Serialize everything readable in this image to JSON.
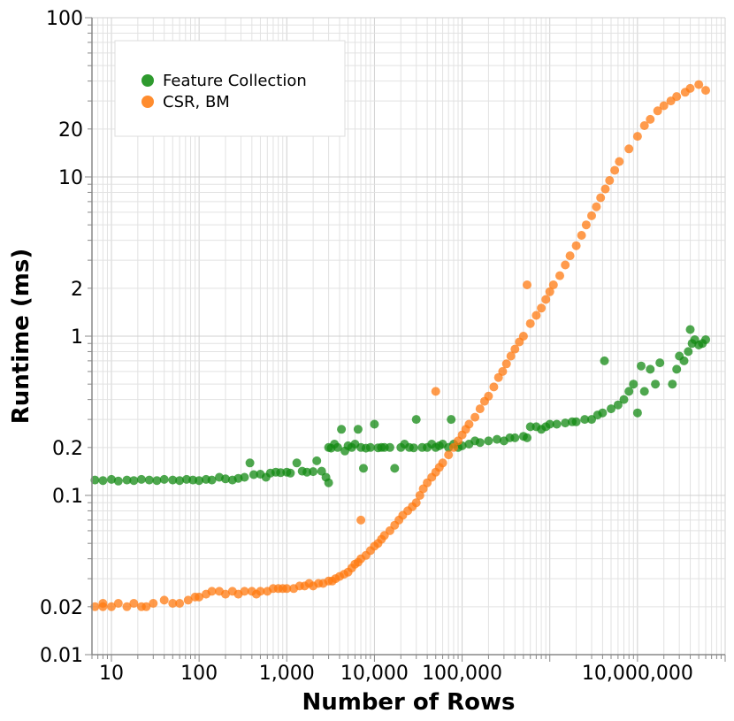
{
  "chart_data": {
    "type": "scatter",
    "xlabel": "Number of Rows",
    "ylabel": "Runtime (ms)",
    "x_scale": "log",
    "y_scale": "log",
    "xlim": [
      6,
      100000000
    ],
    "ylim": [
      0.01,
      100
    ],
    "grid": true,
    "legend_position": "top-left",
    "x_tick_labels": [
      {
        "value": 10,
        "label": "10"
      },
      {
        "value": 100,
        "label": "100"
      },
      {
        "value": 1000,
        "label": "1,000"
      },
      {
        "value": 10000,
        "label": "10,000"
      },
      {
        "value": 100000,
        "label": "100,000"
      },
      {
        "value": 10000000,
        "label": "10,000,000"
      }
    ],
    "y_tick_labels": [
      {
        "value": 0.01,
        "label": "0.01"
      },
      {
        "value": 0.02,
        "label": "0.02"
      },
      {
        "value": 0.1,
        "label": "0.1"
      },
      {
        "value": 0.2,
        "label": "0.2"
      },
      {
        "value": 1,
        "label": "1"
      },
      {
        "value": 2,
        "label": "2"
      },
      {
        "value": 10,
        "label": "10"
      },
      {
        "value": 20,
        "label": "20"
      },
      {
        "value": 100,
        "label": "100"
      }
    ],
    "series": [
      {
        "name": "Feature Collection",
        "color": "#2e9a2e",
        "points": [
          [
            6.5,
            0.125
          ],
          [
            8,
            0.124
          ],
          [
            10,
            0.126
          ],
          [
            12,
            0.123
          ],
          [
            15,
            0.125
          ],
          [
            18,
            0.124
          ],
          [
            22,
            0.126
          ],
          [
            27,
            0.125
          ],
          [
            33,
            0.124
          ],
          [
            40,
            0.126
          ],
          [
            50,
            0.125
          ],
          [
            60,
            0.124
          ],
          [
            72,
            0.126
          ],
          [
            85,
            0.125
          ],
          [
            100,
            0.124
          ],
          [
            120,
            0.126
          ],
          [
            140,
            0.125
          ],
          [
            170,
            0.13
          ],
          [
            200,
            0.127
          ],
          [
            240,
            0.125
          ],
          [
            280,
            0.128
          ],
          [
            330,
            0.13
          ],
          [
            380,
            0.16
          ],
          [
            420,
            0.135
          ],
          [
            500,
            0.136
          ],
          [
            580,
            0.13
          ],
          [
            650,
            0.138
          ],
          [
            750,
            0.14
          ],
          [
            850,
            0.139
          ],
          [
            1000,
            0.14
          ],
          [
            1100,
            0.138
          ],
          [
            1300,
            0.16
          ],
          [
            1500,
            0.142
          ],
          [
            1700,
            0.14
          ],
          [
            2000,
            0.141
          ],
          [
            2200,
            0.165
          ],
          [
            2500,
            0.142
          ],
          [
            2800,
            0.13
          ],
          [
            3000,
            0.12
          ],
          [
            3200,
            0.198
          ],
          [
            3500,
            0.21
          ],
          [
            3800,
            0.2
          ],
          [
            4200,
            0.26
          ],
          [
            4600,
            0.19
          ],
          [
            5000,
            0.205
          ],
          [
            5500,
            0.2
          ],
          [
            6000,
            0.21
          ],
          [
            6500,
            0.26
          ],
          [
            7000,
            0.2
          ],
          [
            7500,
            0.148
          ],
          [
            8000,
            0.198
          ],
          [
            9000,
            0.2
          ],
          [
            10000,
            0.28
          ],
          [
            11000,
            0.199
          ],
          [
            12000,
            0.2
          ],
          [
            13000,
            0.2
          ],
          [
            15000,
            0.2
          ],
          [
            17000,
            0.148
          ],
          [
            20000,
            0.2
          ],
          [
            22000,
            0.21
          ],
          [
            25000,
            0.2
          ],
          [
            28000,
            0.199
          ],
          [
            30000,
            0.3
          ],
          [
            35000,
            0.2
          ],
          [
            40000,
            0.2
          ],
          [
            45000,
            0.21
          ],
          [
            50000,
            0.2
          ],
          [
            55000,
            0.205
          ],
          [
            60000,
            0.21
          ],
          [
            70000,
            0.2
          ],
          [
            75000,
            0.3
          ],
          [
            80000,
            0.21
          ],
          [
            90000,
            0.2
          ],
          [
            100000,
            0.205
          ],
          [
            120000,
            0.21
          ],
          [
            140000,
            0.22
          ],
          [
            160000,
            0.215
          ],
          [
            200000,
            0.22
          ],
          [
            250000,
            0.225
          ],
          [
            300000,
            0.22
          ],
          [
            350000,
            0.23
          ],
          [
            400000,
            0.23
          ],
          [
            500000,
            0.235
          ],
          [
            550000,
            0.23
          ],
          [
            600000,
            0.27
          ],
          [
            700000,
            0.27
          ],
          [
            800000,
            0.26
          ],
          [
            900000,
            0.27
          ],
          [
            1000000,
            0.28
          ],
          [
            1200000,
            0.28
          ],
          [
            1500000,
            0.285
          ],
          [
            1800000,
            0.29
          ],
          [
            2000000,
            0.29
          ],
          [
            2500000,
            0.3
          ],
          [
            3000,
            0.2
          ],
          [
            3000000,
            0.3
          ],
          [
            3500000,
            0.32
          ],
          [
            4000000,
            0.33
          ],
          [
            4200000,
            0.7
          ],
          [
            5000000,
            0.35
          ],
          [
            6000000,
            0.37
          ],
          [
            7000000,
            0.4
          ],
          [
            8000000,
            0.45
          ],
          [
            9000000,
            0.5
          ],
          [
            10000000,
            0.33
          ],
          [
            11000000,
            0.65
          ],
          [
            12000000,
            0.45
          ],
          [
            14000000,
            0.62
          ],
          [
            16000000,
            0.5
          ],
          [
            18000000,
            0.68
          ],
          [
            25000000,
            0.5
          ],
          [
            28000000,
            0.62
          ],
          [
            30000000,
            0.75
          ],
          [
            34000000,
            0.7
          ],
          [
            38000000,
            0.8
          ],
          [
            40000000,
            1.1
          ],
          [
            42000000,
            0.9
          ],
          [
            45000000,
            0.95
          ],
          [
            50000000,
            0.88
          ],
          [
            55000000,
            0.9
          ],
          [
            60000000,
            0.95
          ]
        ]
      },
      {
        "name": "CSR, BM",
        "color": "#ff8c2e",
        "points": [
          [
            6.5,
            0.02
          ],
          [
            8,
            0.02
          ],
          [
            8,
            0.021
          ],
          [
            10,
            0.02
          ],
          [
            12,
            0.021
          ],
          [
            15,
            0.02
          ],
          [
            18,
            0.021
          ],
          [
            22,
            0.02
          ],
          [
            25,
            0.02
          ],
          [
            30,
            0.021
          ],
          [
            40,
            0.022
          ],
          [
            50,
            0.021
          ],
          [
            60,
            0.021
          ],
          [
            75,
            0.022
          ],
          [
            90,
            0.023
          ],
          [
            100,
            0.023
          ],
          [
            120,
            0.024
          ],
          [
            140,
            0.025
          ],
          [
            170,
            0.025
          ],
          [
            200,
            0.024
          ],
          [
            240,
            0.025
          ],
          [
            280,
            0.024
          ],
          [
            330,
            0.025
          ],
          [
            400,
            0.025
          ],
          [
            450,
            0.024
          ],
          [
            500,
            0.025
          ],
          [
            600,
            0.025
          ],
          [
            700,
            0.026
          ],
          [
            800,
            0.026
          ],
          [
            900,
            0.026
          ],
          [
            1000,
            0.026
          ],
          [
            1200,
            0.026
          ],
          [
            1400,
            0.027
          ],
          [
            1600,
            0.027
          ],
          [
            1800,
            0.028
          ],
          [
            2000,
            0.027
          ],
          [
            2300,
            0.028
          ],
          [
            2600,
            0.028
          ],
          [
            3000,
            0.029
          ],
          [
            3300,
            0.029
          ],
          [
            3600,
            0.03
          ],
          [
            4000,
            0.031
          ],
          [
            4500,
            0.032
          ],
          [
            5000,
            0.033
          ],
          [
            5500,
            0.035
          ],
          [
            6000,
            0.037
          ],
          [
            6500,
            0.038
          ],
          [
            7000,
            0.04
          ],
          [
            8000,
            0.042
          ],
          [
            9000,
            0.045
          ],
          [
            10000,
            0.048
          ],
          [
            11000,
            0.05
          ],
          [
            12000,
            0.053
          ],
          [
            13000,
            0.056
          ],
          [
            15000,
            0.06
          ],
          [
            17000,
            0.065
          ],
          [
            19000,
            0.07
          ],
          [
            21000,
            0.075
          ],
          [
            24000,
            0.08
          ],
          [
            27000,
            0.085
          ],
          [
            30000,
            0.09
          ],
          [
            33000,
            0.1
          ],
          [
            36000,
            0.11
          ],
          [
            40000,
            0.12
          ],
          [
            45000,
            0.13
          ],
          [
            50000,
            0.14
          ],
          [
            55000,
            0.15
          ],
          [
            60000,
            0.16
          ],
          [
            70000,
            0.18
          ],
          [
            80000,
            0.2
          ],
          [
            90000,
            0.22
          ],
          [
            100000,
            0.24
          ],
          [
            110000,
            0.26
          ],
          [
            120000,
            0.28
          ],
          [
            140000,
            0.31
          ],
          [
            160000,
            0.35
          ],
          [
            180000,
            0.39
          ],
          [
            200000,
            0.42
          ],
          [
            230000,
            0.48
          ],
          [
            260000,
            0.55
          ],
          [
            290000,
            0.6
          ],
          [
            320000,
            0.67
          ],
          [
            360000,
            0.75
          ],
          [
            400000,
            0.83
          ],
          [
            450000,
            0.92
          ],
          [
            500000,
            1.0
          ],
          [
            550000,
            2.1
          ],
          [
            600000,
            1.2
          ],
          [
            700000,
            1.35
          ],
          [
            800000,
            1.5
          ],
          [
            900000,
            1.7
          ],
          [
            1000000,
            1.9
          ],
          [
            1100000,
            2.1
          ],
          [
            1300000,
            2.4
          ],
          [
            1500000,
            2.8
          ],
          [
            1700000,
            3.2
          ],
          [
            2000000,
            3.7
          ],
          [
            2300000,
            4.3
          ],
          [
            2600000,
            5.0
          ],
          [
            3000000,
            5.7
          ],
          [
            3400000,
            6.5
          ],
          [
            3800000,
            7.4
          ],
          [
            4300000,
            8.4
          ],
          [
            4800000,
            9.5
          ],
          [
            5500000,
            11
          ],
          [
            6200000,
            12.5
          ],
          [
            7000,
            0.07
          ],
          [
            8000000,
            15
          ],
          [
            10000000,
            18
          ],
          [
            12000000,
            21
          ],
          [
            14000000,
            23
          ],
          [
            17000000,
            26
          ],
          [
            20000000,
            28
          ],
          [
            24000000,
            30
          ],
          [
            28000000,
            32
          ],
          [
            35000000,
            34
          ],
          [
            40000000,
            36
          ],
          [
            50000000,
            38
          ],
          [
            60000000,
            35
          ],
          [
            50000,
            0.45
          ]
        ]
      }
    ]
  }
}
